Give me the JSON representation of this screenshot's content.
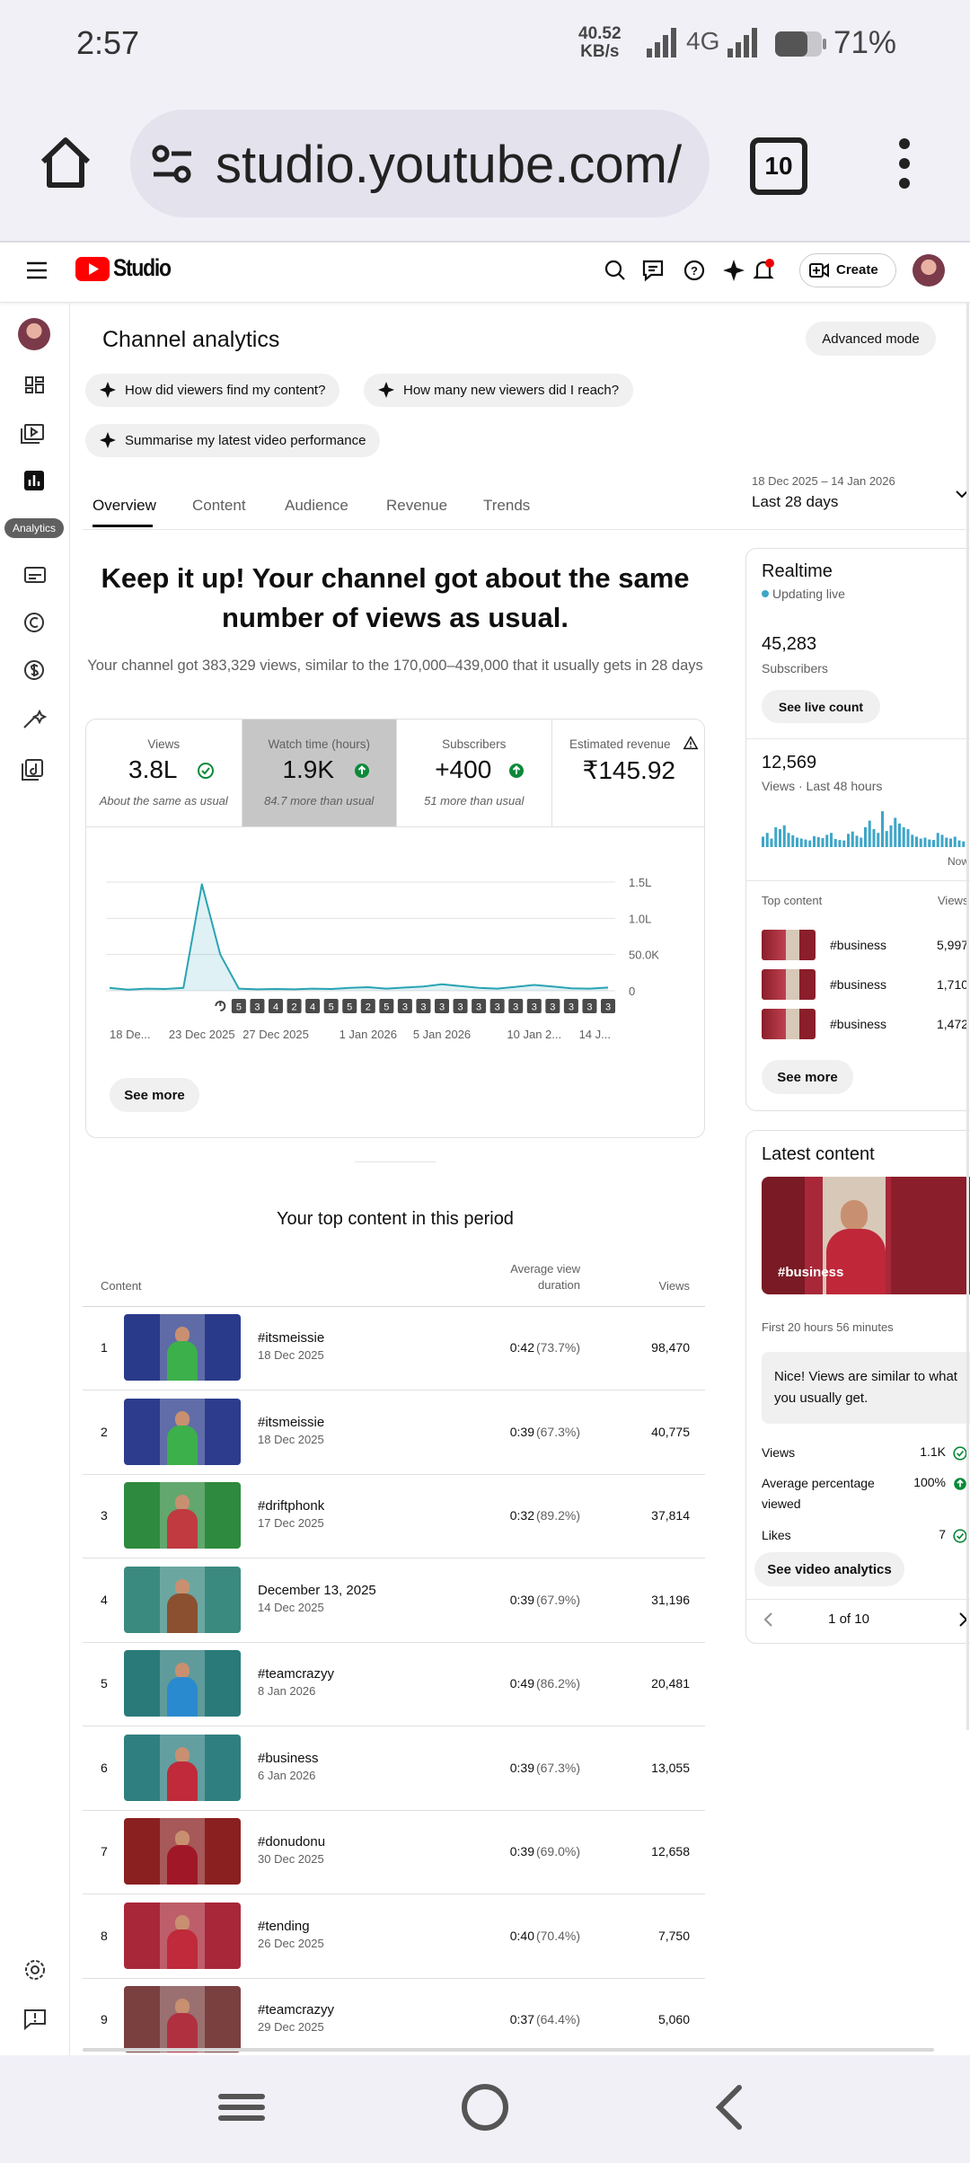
{
  "status_bar": {
    "time": "2:57",
    "speed": "40.52",
    "speed_unit": "KB/s",
    "network": "4G",
    "battery": "71%"
  },
  "browser": {
    "url": "studio.youtube.com/",
    "tabs": "10"
  },
  "header": {
    "logo": "Studio",
    "create": "Create"
  },
  "sidebar": {
    "tooltip": "Analytics"
  },
  "page": {
    "title": "Channel analytics",
    "advanced_mode": "Advanced mode",
    "chips": [
      "How did viewers find my content?",
      "How many new viewers did I reach?",
      "Summarise my latest video performance"
    ],
    "tabs": [
      "Overview",
      "Content",
      "Audience",
      "Revenue",
      "Trends"
    ],
    "date_range": "18 Dec 2025 – 14 Jan 2026",
    "period": "Last 28 days"
  },
  "summary": {
    "headline": [
      "Keep it up! Your channel got about the same",
      "number of views as usual."
    ],
    "detail": "Your channel got 383,329 views, similar to the 170,000–439,000 that it usually gets in 28 days"
  },
  "metrics": [
    {
      "label": "Views",
      "value": "3.8L",
      "note": "About the same as usual"
    },
    {
      "label": "Watch time (hours)",
      "value": "1.9K",
      "note": "84.7 more than usual"
    },
    {
      "label": "Subscribers",
      "value": "+400",
      "note": "51 more than usual"
    },
    {
      "label": "Estimated revenue",
      "value": "₹145.92"
    }
  ],
  "chart_data": {
    "type": "line",
    "categories": [
      "18 De...",
      null,
      null,
      null,
      null,
      "23 Dec 2025",
      null,
      null,
      null,
      "27 Dec 2025",
      null,
      null,
      null,
      null,
      "1 Jan 2026",
      null,
      null,
      null,
      "5 Jan 2026",
      null,
      null,
      null,
      null,
      "10 Jan 2...",
      null,
      null,
      null,
      "14 J..."
    ],
    "values": [
      4000,
      1500,
      3000,
      2500,
      4000,
      147000,
      50000,
      3000,
      2000,
      2500,
      2000,
      3000,
      2500,
      4000,
      5000,
      3000,
      4500,
      6000,
      9000,
      6500,
      4000,
      3000,
      5500,
      8000,
      6000,
      3500,
      3000,
      4500
    ],
    "color": "#2aa3b3",
    "ylim": [
      0,
      150000
    ],
    "yticks": [
      {
        "value": 0,
        "label": "0"
      },
      {
        "value": 50000,
        "label": "50.0K"
      },
      {
        "value": 100000,
        "label": "1.0L"
      },
      {
        "value": 150000,
        "label": "1.5L"
      }
    ],
    "grid": true,
    "markers": [
      5,
      3,
      4,
      2,
      4,
      5,
      5,
      2,
      5,
      3,
      3,
      3,
      3,
      3,
      3,
      3,
      3,
      3,
      3,
      3,
      3
    ]
  },
  "see_more": "See more",
  "top_content": {
    "title": "Your top content in this period",
    "columns": [
      "Content",
      "Average view duration",
      "Views"
    ],
    "rows": [
      {
        "rank": 1,
        "title": "#itsmeissie",
        "date": "18 Dec 2025",
        "duration": "0:42",
        "percent": "(73.7%)",
        "views": "98,470"
      },
      {
        "rank": 2,
        "title": "#itsmeissie",
        "date": "18 Dec 2025",
        "duration": "0:39",
        "percent": "(67.3%)",
        "views": "40,775"
      },
      {
        "rank": 3,
        "title": "#driftphonk",
        "date": "17 Dec 2025",
        "duration": "0:32",
        "percent": "(89.2%)",
        "views": "37,814"
      },
      {
        "rank": 4,
        "title": "December 13, 2025",
        "date": "14 Dec 2025",
        "duration": "0:39",
        "percent": "(67.9%)",
        "views": "31,196"
      },
      {
        "rank": 5,
        "title": "#teamcrazyy",
        "date": "8 Jan 2026",
        "duration": "0:49",
        "percent": "(86.2%)",
        "views": "20,481"
      },
      {
        "rank": 6,
        "title": "#business",
        "date": "6 Jan 2026",
        "duration": "0:39",
        "percent": "(67.3%)",
        "views": "13,055"
      },
      {
        "rank": 7,
        "title": "#donudonu",
        "date": "30 Dec 2025",
        "duration": "0:39",
        "percent": "(69.0%)",
        "views": "12,658"
      },
      {
        "rank": 8,
        "title": "#tending",
        "date": "26 Dec 2025",
        "duration": "0:40",
        "percent": "(70.4%)",
        "views": "7,750"
      },
      {
        "rank": 9,
        "title": "#teamcrazyy",
        "date": "29 Dec 2025",
        "duration": "0:37",
        "percent": "(64.4%)",
        "views": "5,060"
      }
    ]
  },
  "realtime": {
    "title": "Realtime",
    "status": "Updating live",
    "subscribers": "45,283",
    "subscribers_label": "Subscribers",
    "live_count": "See live count",
    "views": "12,569",
    "views_label": "Views · Last 48 hours",
    "bars": [
      220,
      300,
      180,
      420,
      380,
      460,
      300,
      250,
      200,
      180,
      160,
      140,
      230,
      210,
      190,
      260,
      300,
      170,
      150,
      140,
      280,
      330,
      240,
      200,
      420,
      560,
      380,
      300,
      760,
      340,
      460,
      620,
      500,
      420,
      380,
      260,
      220,
      180,
      200,
      160,
      150,
      300,
      260,
      200,
      180,
      220,
      140,
      120
    ],
    "bars_ylim": [
      0,
      800
    ],
    "now": "Now",
    "top_label": "Top content",
    "views_column": "Views",
    "top": [
      {
        "title": "#business",
        "views": "5,997"
      },
      {
        "title": "#business",
        "views": "1,710"
      },
      {
        "title": "#business",
        "views": "1,472"
      }
    ],
    "see_more": "See more"
  },
  "latest": {
    "title": "Latest content",
    "video_title": "#business",
    "period": "First 20 hours 56 minutes",
    "message": "Nice! Views are similar to what you usually get.",
    "stats": [
      {
        "label": "Views",
        "value": "1.1K"
      },
      {
        "label": "Average percentage viewed",
        "value": "100%"
      },
      {
        "label": "Likes",
        "value": "7"
      }
    ],
    "button": "See video analytics",
    "pager": "1 of 10"
  }
}
